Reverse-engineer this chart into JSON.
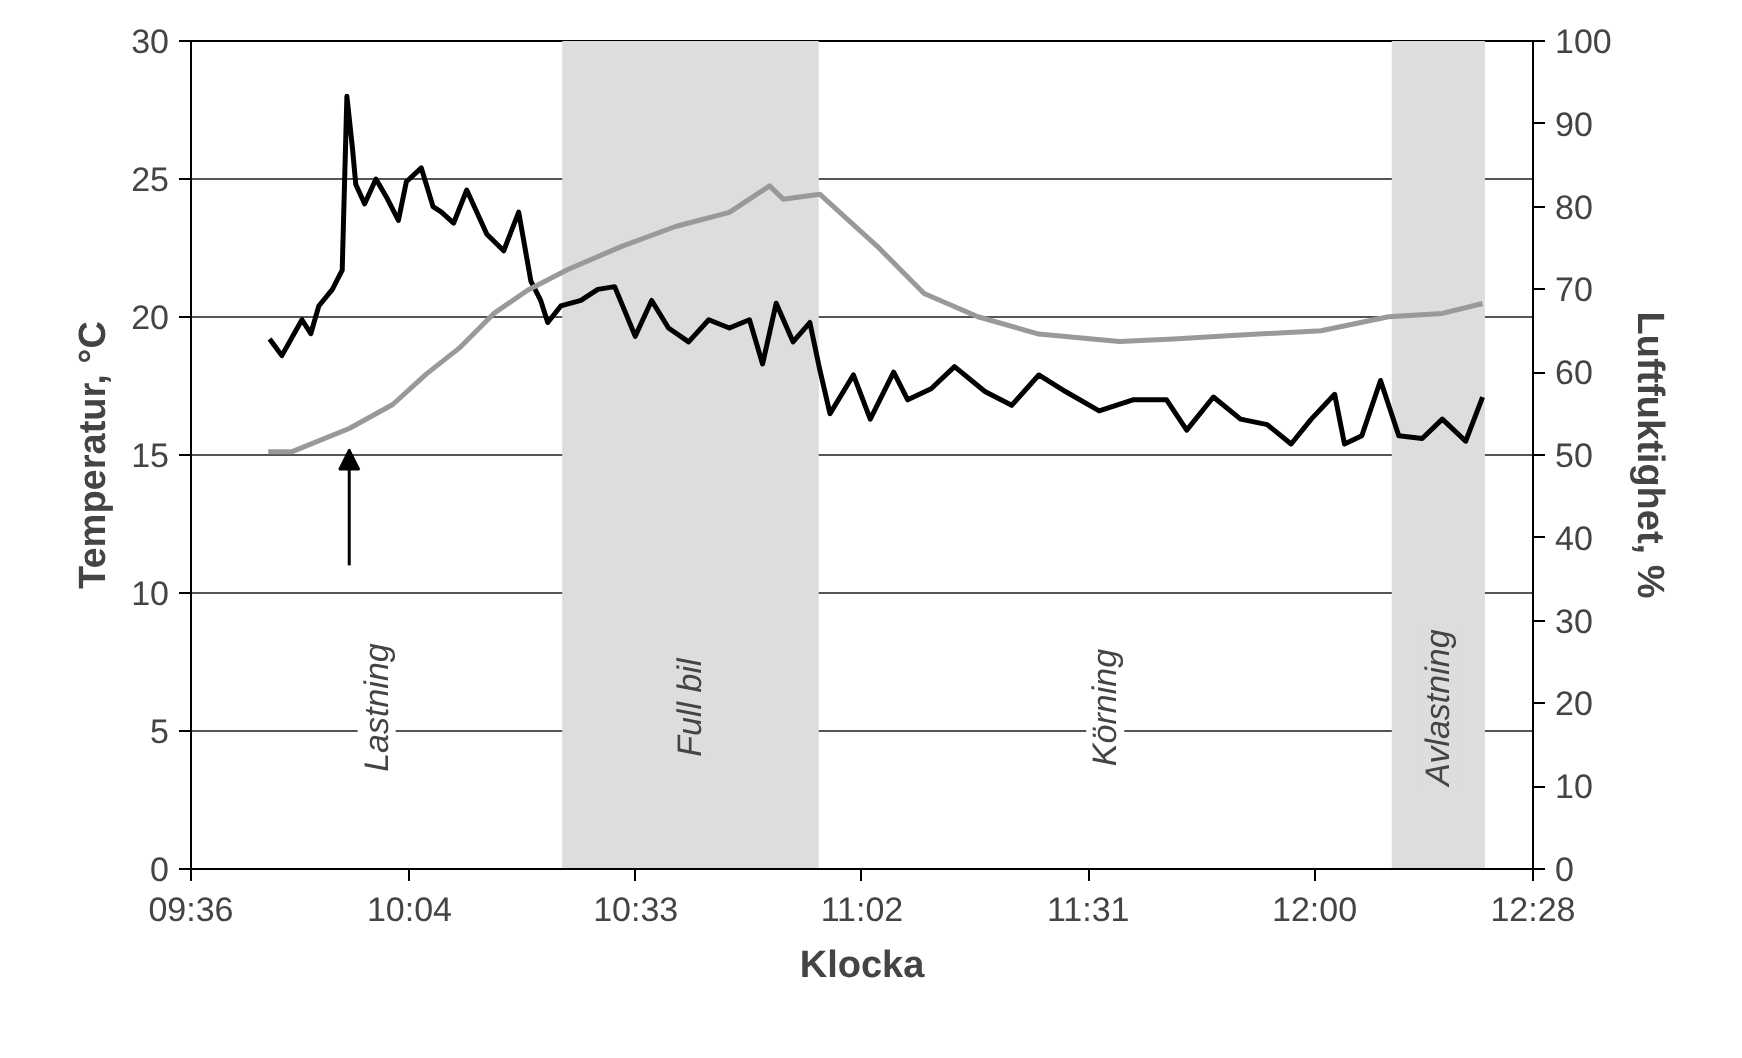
{
  "chart_data": {
    "type": "line",
    "xlabel": "Klocka",
    "ylabel": "Temperatur, °C",
    "y2label": "Luftfuktighet, %",
    "xlim": [
      9.6,
      12.4667
    ],
    "xticks": [
      {
        "value": 9.6,
        "label": "09:36"
      },
      {
        "value": 10.0667,
        "label": "10:04"
      },
      {
        "value": 10.55,
        "label": "10:33"
      },
      {
        "value": 11.0333,
        "label": "11:02"
      },
      {
        "value": 11.5167,
        "label": "11:31"
      },
      {
        "value": 12.0,
        "label": "12:00"
      },
      {
        "value": 12.4667,
        "label": "12:28"
      }
    ],
    "ylim": [
      0,
      30
    ],
    "yticks": [
      0,
      5,
      10,
      15,
      20,
      25,
      30
    ],
    "y2lim": [
      0,
      100
    ],
    "y2ticks": [
      0,
      10,
      20,
      30,
      40,
      50,
      60,
      70,
      80,
      90,
      100
    ],
    "grid": "y",
    "line_style": "solid",
    "marker": "none",
    "series": [
      {
        "color": "#000000",
        "x": [
          9.768,
          9.794,
          9.837,
          9.856,
          9.873,
          9.902,
          9.923,
          9.933,
          9.945,
          9.952,
          9.971,
          9.995,
          10.019,
          10.043,
          10.06,
          10.092,
          10.117,
          10.135,
          10.161,
          10.189,
          10.232,
          10.268,
          10.3,
          10.326,
          10.347,
          10.362,
          10.39,
          10.433,
          10.469,
          10.505,
          10.549,
          10.584,
          10.62,
          10.663,
          10.706,
          10.75,
          10.793,
          10.821,
          10.85,
          10.886,
          10.922,
          10.943,
          10.965,
          11.015,
          11.051,
          11.101,
          11.131,
          11.181,
          11.231,
          11.296,
          11.353,
          11.411,
          11.468,
          11.54,
          11.612,
          11.684,
          11.727,
          11.784,
          11.842,
          11.899,
          11.95,
          11.993,
          12.043,
          12.064,
          12.101,
          12.141,
          12.18,
          12.23,
          12.273,
          12.323,
          12.359
        ],
        "values": [
          19.2,
          18.6,
          19.9,
          19.4,
          20.4,
          21.0,
          21.7,
          28.0,
          26.1,
          24.8,
          24.1,
          25.0,
          24.3,
          23.5,
          24.9,
          25.4,
          24.0,
          23.8,
          23.4,
          24.6,
          23.0,
          22.4,
          23.8,
          21.3,
          20.6,
          19.8,
          20.4,
          20.6,
          21.0,
          21.1,
          19.3,
          20.6,
          19.6,
          19.1,
          19.9,
          19.6,
          19.9,
          18.3,
          20.5,
          19.1,
          19.8,
          18.1,
          16.5,
          17.9,
          16.3,
          18.0,
          17.0,
          17.4,
          18.2,
          17.3,
          16.8,
          17.9,
          17.3,
          16.6,
          17.0,
          17.0,
          15.9,
          17.1,
          16.3,
          16.1,
          15.4,
          16.3,
          17.2,
          15.4,
          15.7,
          17.7,
          15.7,
          15.6,
          16.3,
          15.5,
          17.1
        ]
      },
      {
        "color": "#999999",
        "axis": "y2",
        "x": [
          9.765,
          9.816,
          9.938,
          10.031,
          10.103,
          10.175,
          10.247,
          10.319,
          10.405,
          10.52,
          10.635,
          10.75,
          10.836,
          10.865,
          10.943,
          11.066,
          11.166,
          11.281,
          11.411,
          11.583,
          11.698,
          11.842,
          12.014,
          12.158,
          12.273,
          12.359
        ],
        "values": [
          50.4,
          50.4,
          53.2,
          56.1,
          59.8,
          63.0,
          67.1,
          69.9,
          72.4,
          75.2,
          77.6,
          79.3,
          82.5,
          80.9,
          81.5,
          75.2,
          69.5,
          66.7,
          64.6,
          63.7,
          64.0,
          64.5,
          65.0,
          66.7,
          67.1,
          68.3
        ]
      }
    ],
    "bands": [
      {
        "axis": "x",
        "from": 10.393,
        "to": 10.941,
        "label": "Full bil",
        "color": "#dddddd"
      },
      {
        "axis": "x",
        "from": 12.165,
        "to": 12.364,
        "label": "Avlastning",
        "color": "#dddddd"
      }
    ],
    "annotations": [
      "Lastning",
      "Körning"
    ]
  }
}
